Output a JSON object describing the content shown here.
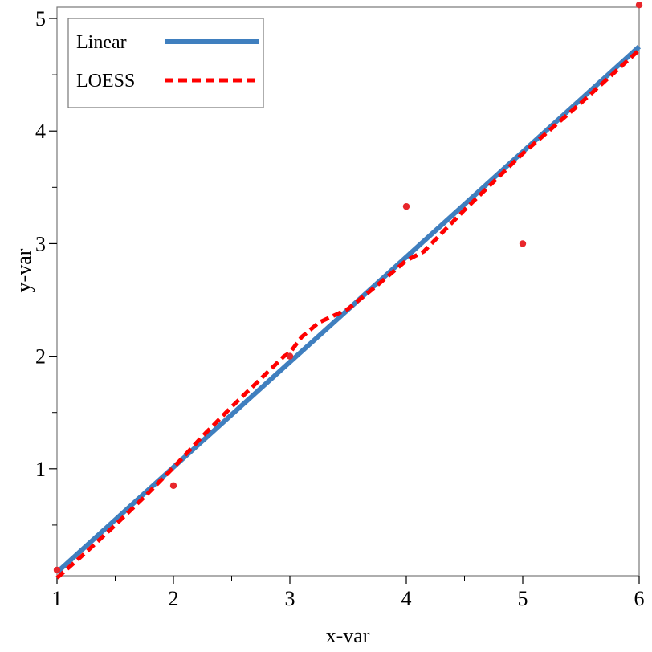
{
  "chart_data": {
    "type": "scatter",
    "xlabel": "x-var",
    "ylabel": "y-var",
    "xlim": [
      1,
      6
    ],
    "ylim": [
      0.05,
      5.1
    ],
    "x_ticks": [
      1,
      2,
      3,
      4,
      5,
      6
    ],
    "x_minor_ticks": [
      1.5,
      2.5,
      3.5,
      4.5,
      5.5
    ],
    "y_ticks": [
      1,
      2,
      3,
      4,
      5
    ],
    "y_minor_ticks": [
      0.5,
      1.5,
      2.5,
      3.5,
      4.5
    ],
    "grid": false,
    "legend_position": "top-left",
    "points": {
      "color": "#e8262b",
      "x": [
        1,
        2,
        3,
        4,
        5,
        6
      ],
      "y": [
        0.1,
        0.85,
        2.0,
        3.33,
        3.0,
        5.12
      ]
    },
    "series": [
      {
        "name": "Linear",
        "style": "solid",
        "color": "#3f7fbf",
        "x": [
          1,
          6
        ],
        "y": [
          0.08,
          4.75
        ]
      },
      {
        "name": "LOESS",
        "style": "dashed",
        "color": "#ff0000",
        "x": [
          1.0,
          1.25,
          1.5,
          1.75,
          2.0,
          2.25,
          2.5,
          2.75,
          2.95,
          3.0,
          3.1,
          3.25,
          3.5,
          3.75,
          4.0,
          4.15,
          4.5,
          5.0,
          5.5,
          6.0
        ],
        "y": [
          0.03,
          0.26,
          0.5,
          0.75,
          1.01,
          1.29,
          1.55,
          1.8,
          2.0,
          2.03,
          2.17,
          2.3,
          2.42,
          2.63,
          2.85,
          2.93,
          3.3,
          3.8,
          4.25,
          4.72
        ]
      }
    ]
  }
}
